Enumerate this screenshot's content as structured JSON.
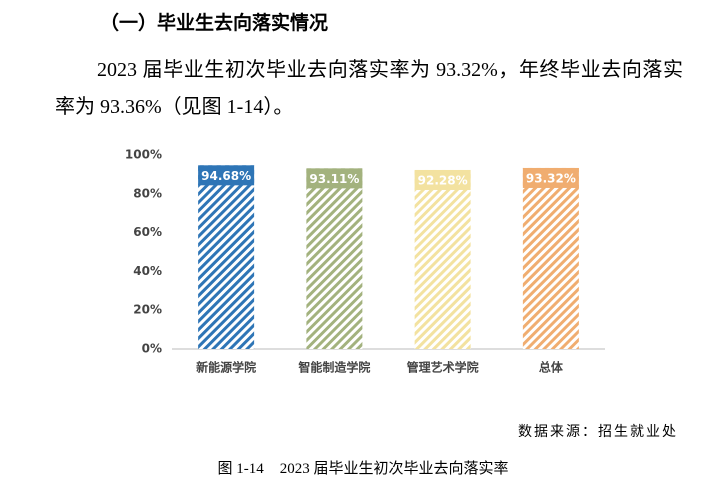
{
  "heading": "（一）毕业生去向落实情况",
  "paragraph": "2023 届毕业生初次毕业去向落实率为 93.32%，年终毕业去向落实率为 93.36%（见图 1-14）。",
  "chart_data": {
    "type": "bar",
    "categories": [
      "新能源学院",
      "智能制造学院",
      "管理艺术学院",
      "总体"
    ],
    "values": [
      94.68,
      93.11,
      92.28,
      93.32
    ],
    "value_labels": [
      "94.68%",
      "93.11%",
      "92.28%",
      "93.32%"
    ],
    "colors": [
      "#2e75b6",
      "#a3b27e",
      "#f3e2a0",
      "#f0ad70"
    ],
    "ylim": [
      0,
      100
    ],
    "yticks": [
      {
        "value": 0,
        "label": "0%"
      },
      {
        "value": 20,
        "label": "20%"
      },
      {
        "value": 40,
        "label": "40%"
      },
      {
        "value": 60,
        "label": "60%"
      },
      {
        "value": 80,
        "label": "80%"
      },
      {
        "value": 100,
        "label": "100%"
      }
    ],
    "grid": false
  },
  "source": "数据来源：招生就业处",
  "caption": {
    "number": "图 1-14",
    "title": "2023 届毕业生初次毕业去向落实率"
  }
}
